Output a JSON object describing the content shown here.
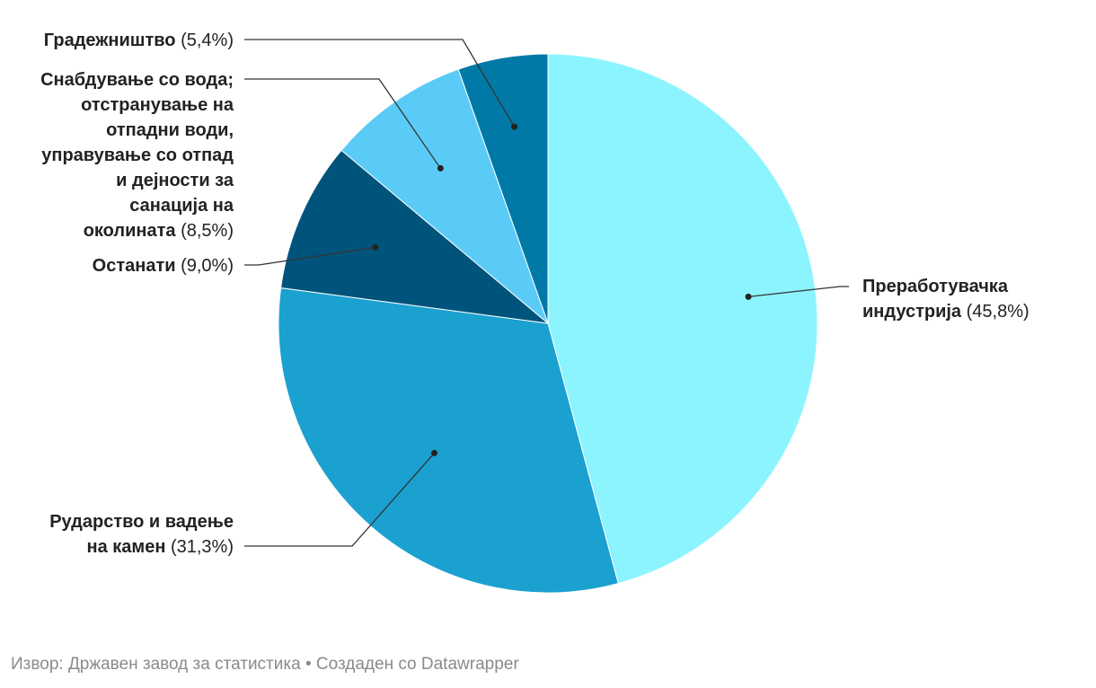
{
  "chart_data": {
    "type": "pie",
    "start_angle_deg": 0,
    "direction": "clockwise",
    "slices": [
      {
        "name": "Преработувачка индустрија",
        "value": 45.8,
        "pct_text": "(45,8%)",
        "color": "#8cf4ff"
      },
      {
        "name": "Рударство и вадење на камен",
        "value": 31.3,
        "pct_text": "(31,3%)",
        "color": "#1aa1cf"
      },
      {
        "name": "Останати",
        "value": 9.0,
        "pct_text": "(9,0%)",
        "color": "#00547b"
      },
      {
        "name": "Снабдување со вода; отстранување на отпадни води, управување со отпад и дејности за санација на околината",
        "value": 8.5,
        "pct_text": "(8,5%)",
        "color": "#5acbf7"
      },
      {
        "name": "Градежништво",
        "value": 5.4,
        "pct_text": "(5,4%)",
        "color": "#0079a6"
      }
    ]
  },
  "footer": {
    "source_text": "Извор: Државен завод за статистика",
    "separator": "•",
    "credit_text": "Создаден со Datawrapper"
  }
}
